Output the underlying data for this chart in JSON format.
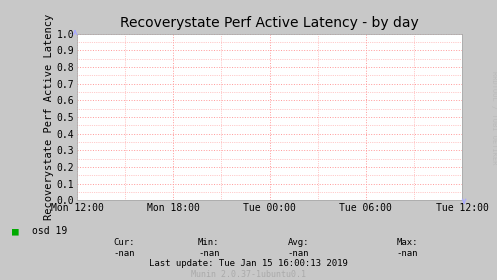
{
  "title": "Recoverystate Perf Active Latency - by day",
  "ylabel": "Recoverystate Perf Active Latency",
  "ylim": [
    0.0,
    1.0
  ],
  "yticks": [
    0.0,
    0.1,
    0.2,
    0.3,
    0.4,
    0.5,
    0.6,
    0.7,
    0.8,
    0.9,
    1.0
  ],
  "xtick_labels": [
    "Mon 12:00",
    "Mon 18:00",
    "Tue 00:00",
    "Tue 06:00",
    "Tue 12:00"
  ],
  "bg_color": "#c8c8c8",
  "plot_bg_color": "#ffffff",
  "grid_color": "#ff9999",
  "spine_color": "#aaaaaa",
  "arrow_color": "#aaaaff",
  "legend_label": "osd 19",
  "legend_color": "#00aa00",
  "cur_label": "Cur:",
  "cur_val": "-nan",
  "min_label": "Min:",
  "min_val": "-nan",
  "avg_label": "Avg:",
  "avg_val": "-nan",
  "max_label": "Max:",
  "max_val": "-nan",
  "last_update": "Last update: Tue Jan 15 16:00:13 2019",
  "munin_label": "Munin 2.0.37-1ubuntu0.1",
  "rrdtool_label": "RRDTOOL / TOBI OETIKER",
  "title_fontsize": 10,
  "axis_label_fontsize": 7.5,
  "tick_fontsize": 7,
  "footer_fontsize": 6.5,
  "rrdtool_fontsize": 5
}
